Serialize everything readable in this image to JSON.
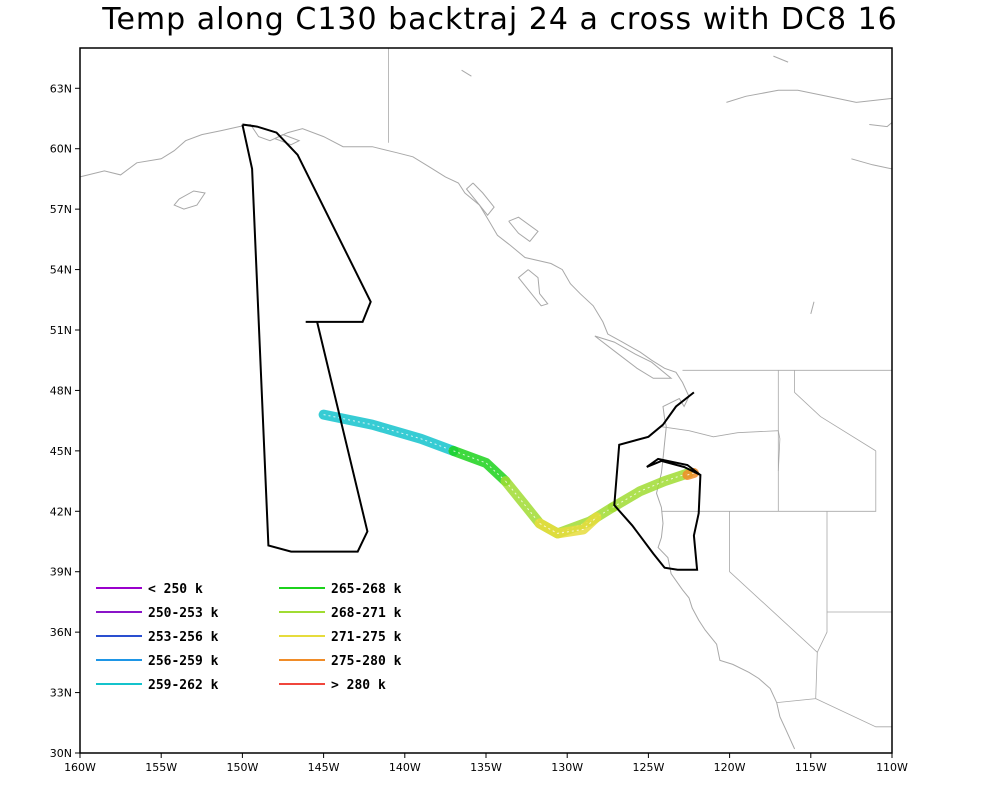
{
  "title": "Temp along C130 backtraj 24 a cross with DC8 16",
  "axes": {
    "lon_ticks": [
      "160W",
      "155W",
      "150W",
      "145W",
      "140W",
      "135W",
      "130W",
      "125W",
      "120W",
      "115W",
      "110W"
    ],
    "lat_ticks": [
      "30N",
      "33N",
      "36N",
      "39N",
      "42N",
      "45N",
      "48N",
      "51N",
      "54N",
      "57N",
      "60N",
      "63N"
    ],
    "lon_range": [
      -160,
      -110
    ],
    "lat_range": [
      30,
      65
    ]
  },
  "colors": {
    "flight_track": "#000000",
    "coastline": "#a8a8a8",
    "frame": "#000000"
  },
  "legend": {
    "left": [
      {
        "label": "< 250 k",
        "color": "#9a00cc"
      },
      {
        "label": "250-253 k",
        "color": "#8a14c8"
      },
      {
        "label": "253-256 k",
        "color": "#2a4fd0"
      },
      {
        "label": "256-259 k",
        "color": "#1e96e6"
      },
      {
        "label": "259-262 k",
        "color": "#14c3cc"
      }
    ],
    "right": [
      {
        "label": "265-268 k",
        "color": "#1cd21c"
      },
      {
        "label": "268-271 k",
        "color": "#a0dc32"
      },
      {
        "label": "271-275 k",
        "color": "#e6dc3c"
      },
      {
        "label": "275-280 k",
        "color": "#f08c28"
      },
      {
        "label": "> 280 k",
        "color": "#f0463c"
      }
    ]
  },
  "flight_track": [
    [
      -150.0,
      61.2
    ],
    [
      -149.4,
      59.0
    ],
    [
      -148.4,
      40.3
    ],
    [
      -147.0,
      40.0
    ],
    [
      -142.9,
      40.0
    ],
    [
      -142.3,
      41.0
    ],
    [
      -145.4,
      51.4
    ],
    [
      -146.1,
      51.4
    ],
    [
      -142.6,
      51.4
    ],
    [
      -142.1,
      52.4
    ],
    [
      -146.6,
      59.7
    ],
    [
      -147.9,
      60.8
    ],
    [
      -149.1,
      61.1
    ],
    [
      -150.0,
      61.2
    ]
  ],
  "flight_track_east": [
    [
      -122.2,
      47.9
    ],
    [
      -123.3,
      47.2
    ],
    [
      -124.1,
      46.3
    ],
    [
      -125.0,
      45.7
    ],
    [
      -126.8,
      45.3
    ],
    [
      -127.1,
      42.3
    ],
    [
      -126.0,
      41.3
    ],
    [
      -124.7,
      39.9
    ],
    [
      -124.0,
      39.2
    ],
    [
      -123.2,
      39.1
    ],
    [
      -122.0,
      39.1
    ],
    [
      -122.2,
      40.8
    ],
    [
      -121.9,
      41.9
    ],
    [
      -121.8,
      43.8
    ],
    [
      -122.8,
      44.2
    ],
    [
      -124.2,
      44.5
    ],
    [
      -125.1,
      44.2
    ],
    [
      -124.4,
      44.6
    ],
    [
      -122.6,
      44.3
    ],
    [
      -121.8,
      43.8
    ]
  ],
  "trajectory_bands": [
    {
      "band": "259-262 k",
      "points": [
        [
          -145.0,
          46.8
        ],
        [
          -142.0,
          46.3
        ],
        [
          -139.0,
          45.6
        ],
        [
          -137.0,
          45.0
        ]
      ]
    },
    {
      "band": "265-268 k",
      "points": [
        [
          -137.0,
          45.0
        ],
        [
          -135.0,
          44.4
        ],
        [
          -133.8,
          43.5
        ]
      ]
    },
    {
      "band": "268-271 k",
      "points": [
        [
          -133.8,
          43.5
        ],
        [
          -132.7,
          42.4
        ],
        [
          -131.7,
          41.4
        ],
        [
          -130.6,
          40.9
        ],
        [
          -128.6,
          41.5
        ],
        [
          -127.2,
          42.2
        ]
      ]
    },
    {
      "band": "271-275 k",
      "points": [
        [
          -131.7,
          41.4
        ],
        [
          -130.6,
          40.9
        ],
        [
          -129.0,
          41.1
        ],
        [
          -128.2,
          41.7
        ]
      ]
    },
    {
      "band": "268-271 k",
      "points": [
        [
          -127.2,
          42.2
        ],
        [
          -125.5,
          43.0
        ],
        [
          -124.0,
          43.5
        ],
        [
          -122.5,
          43.9
        ]
      ]
    },
    {
      "band": "275-280 k",
      "points": [
        [
          -122.6,
          43.8
        ],
        [
          -122.2,
          43.9
        ]
      ]
    }
  ]
}
